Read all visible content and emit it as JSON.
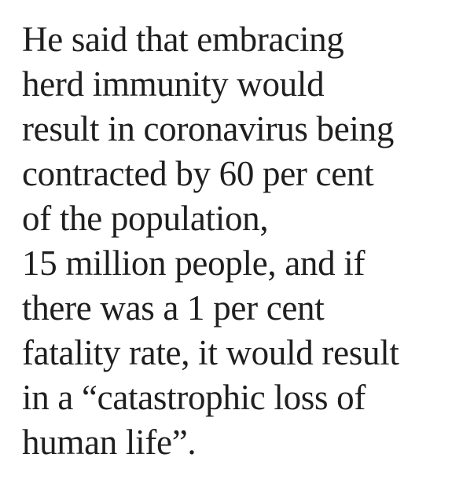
{
  "article": {
    "lines": [
      "He said that embracing",
      "herd immunity would",
      "result in coronavirus being",
      "contracted by 60 per cent",
      "of the population,",
      "15 million people, and if",
      "there was a 1 per cent",
      "fatality rate, it would result",
      "in a “catastrophic loss of",
      "human life”."
    ]
  }
}
